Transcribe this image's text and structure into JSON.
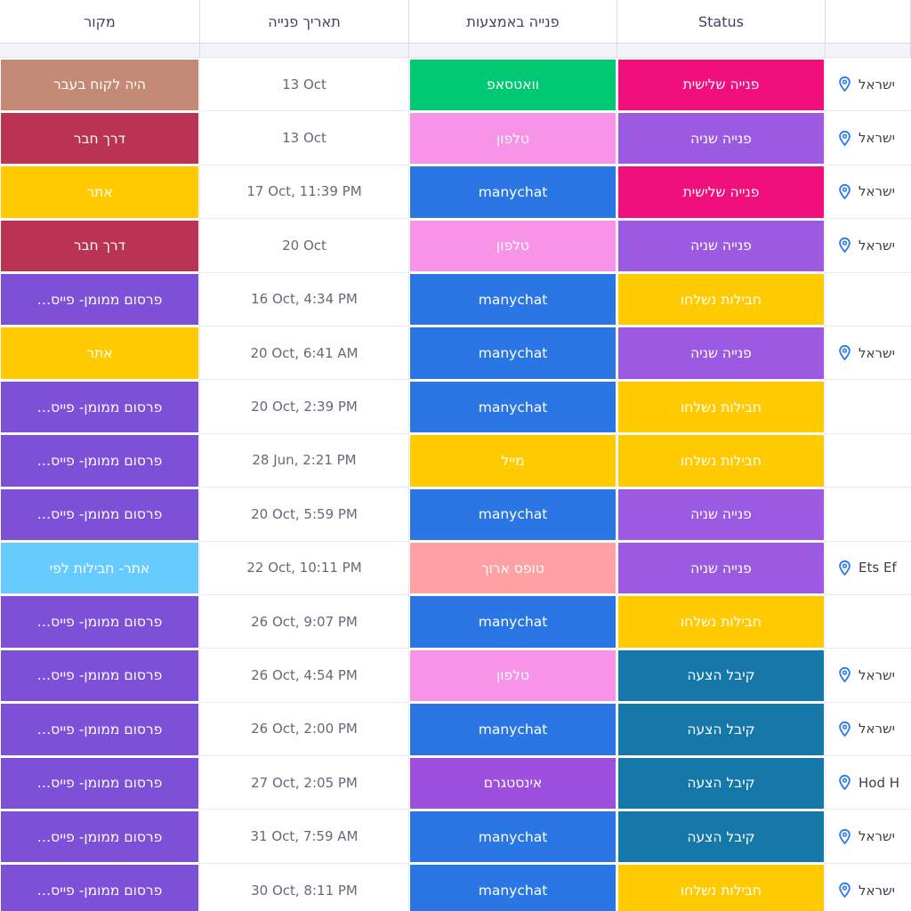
{
  "header": {
    "source": "מקור",
    "date": "תאריך פנייה",
    "via": "פנייה באמצעות",
    "status": "Status",
    "location": ""
  },
  "icons": {
    "location_pin": "location-pin-icon",
    "pin_color": "#2979F2"
  },
  "palette": {
    "brown": "#C38A76",
    "dark_red": "#BB3354",
    "yellow": "#FFCB00",
    "dark_purple": "#7D50D7",
    "light_blue": "#66CCFF",
    "green": "#00C873",
    "pastel_pink": "#F794E8",
    "bright_blue": "#2B76E5",
    "salmon": "#FFA0A5",
    "purple_instagram": "#9D50DD",
    "magenta_pink": "#F00F7D",
    "status_purple": "#9B5AE1",
    "teal_blue": "#1678A8"
  },
  "rows": [
    {
      "source": {
        "label": "היה לקוח בעבר",
        "color": "#C38A76"
      },
      "date": "13 Oct",
      "via": {
        "label": "וואטסאפ",
        "color": "#00C873"
      },
      "status": {
        "label": "פנייה שלישית",
        "color": "#F00F7D"
      },
      "location": "ישראל"
    },
    {
      "source": {
        "label": "דרך חבר",
        "color": "#BB3354"
      },
      "date": "13 Oct",
      "via": {
        "label": "טלפון",
        "color": "#F794E8"
      },
      "status": {
        "label": "פנייה שניה",
        "color": "#9B5AE1"
      },
      "location": "ישראל"
    },
    {
      "source": {
        "label": "אתר",
        "color": "#FFCB00"
      },
      "date": "17 Oct, 11:39 PM",
      "via": {
        "label": "manychat",
        "color": "#2B76E5"
      },
      "status": {
        "label": "פנייה שלישית",
        "color": "#F00F7D"
      },
      "location": "ישראל"
    },
    {
      "source": {
        "label": "דרך חבר",
        "color": "#BB3354"
      },
      "date": "20 Oct",
      "via": {
        "label": "טלפון",
        "color": "#F794E8"
      },
      "status": {
        "label": "פנייה שניה",
        "color": "#9B5AE1"
      },
      "location": "ישראל"
    },
    {
      "source": {
        "label": "פרסום ממומן- פייס…",
        "color": "#7D50D7"
      },
      "date": "16 Oct, 4:34 PM",
      "via": {
        "label": "manychat",
        "color": "#2B76E5"
      },
      "status": {
        "label": "חבילות נשלחו",
        "color": "#FFCB00"
      },
      "location": ""
    },
    {
      "source": {
        "label": "אתר",
        "color": "#FFCB00"
      },
      "date": "20 Oct, 6:41 AM",
      "via": {
        "label": "manychat",
        "color": "#2B76E5"
      },
      "status": {
        "label": "פנייה שניה",
        "color": "#9B5AE1"
      },
      "location": "ישראל"
    },
    {
      "source": {
        "label": "פרסום ממומן- פייס…",
        "color": "#7D50D7"
      },
      "date": "20 Oct, 2:39 PM",
      "via": {
        "label": "manychat",
        "color": "#2B76E5"
      },
      "status": {
        "label": "חבילות נשלחו",
        "color": "#FFCB00"
      },
      "location": ""
    },
    {
      "source": {
        "label": "פרסום ממומן- פייס…",
        "color": "#7D50D7"
      },
      "date": "28 Jun, 2:21 PM",
      "via": {
        "label": "מייל",
        "color": "#FFCB00"
      },
      "status": {
        "label": "חבילות נשלחו",
        "color": "#FFCB00"
      },
      "location": ""
    },
    {
      "source": {
        "label": "פרסום ממומן- פייס…",
        "color": "#7D50D7"
      },
      "date": "20 Oct, 5:59 PM",
      "via": {
        "label": "manychat",
        "color": "#2B76E5"
      },
      "status": {
        "label": "פנייה שניה",
        "color": "#9B5AE1"
      },
      "location": ""
    },
    {
      "source": {
        "label": "אתר- חבילות לפי",
        "color": "#66CCFF"
      },
      "date": "22 Oct, 10:11 PM",
      "via": {
        "label": "טופס ארוך",
        "color": "#FFA0A5"
      },
      "status": {
        "label": "פנייה שניה",
        "color": "#9B5AE1"
      },
      "location": "Ets Ef"
    },
    {
      "source": {
        "label": "פרסום ממומן- פייס…",
        "color": "#7D50D7"
      },
      "date": "26 Oct, 9:07 PM",
      "via": {
        "label": "manychat",
        "color": "#2B76E5"
      },
      "status": {
        "label": "חבילות נשלחו",
        "color": "#FFCB00"
      },
      "location": ""
    },
    {
      "source": {
        "label": "פרסום ממומן- פייס…",
        "color": "#7D50D7"
      },
      "date": "26 Oct, 4:54 PM",
      "via": {
        "label": "טלפון",
        "color": "#F794E8"
      },
      "status": {
        "label": "קיבל הצעה",
        "color": "#1678A8"
      },
      "location": "ישראל"
    },
    {
      "source": {
        "label": "פרסום ממומן- פייס…",
        "color": "#7D50D7"
      },
      "date": "26 Oct, 2:00 PM",
      "via": {
        "label": "manychat",
        "color": "#2B76E5"
      },
      "status": {
        "label": "קיבל הצעה",
        "color": "#1678A8"
      },
      "location": "ישראל"
    },
    {
      "source": {
        "label": "פרסום ממומן- פייס…",
        "color": "#7D50D7"
      },
      "date": "27 Oct, 2:05 PM",
      "via": {
        "label": "אינסטגרם",
        "color": "#9D50DD"
      },
      "status": {
        "label": "קיבל הצעה",
        "color": "#1678A8"
      },
      "location": "Hod H"
    },
    {
      "source": {
        "label": "פרסום ממומן- פייס…",
        "color": "#7D50D7"
      },
      "date": "31 Oct, 7:59 AM",
      "via": {
        "label": "manychat",
        "color": "#2B76E5"
      },
      "status": {
        "label": "קיבל הצעה",
        "color": "#1678A8"
      },
      "location": "ישראל"
    },
    {
      "source": {
        "label": "פרסום ממומן- פייס…",
        "color": "#7D50D7"
      },
      "date": "30 Oct, 8:11 PM",
      "via": {
        "label": "manychat",
        "color": "#2B76E5"
      },
      "status": {
        "label": "חבילות נשלחו",
        "color": "#FFCB00"
      },
      "location": "ישראל"
    }
  ]
}
